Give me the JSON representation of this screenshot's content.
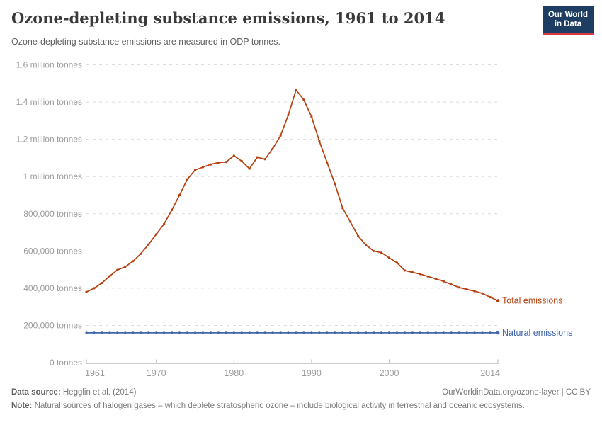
{
  "header": {
    "title": "Ozone-depleting substance emissions, 1961 to 2014",
    "subtitle": "Ozone-depleting substance emissions are measured in ODP tonnes."
  },
  "logo": {
    "line1": "Our World",
    "line2": "in Data"
  },
  "footer": {
    "data_source_label": "Data source:",
    "data_source_text": " Hegglin et al. (2014)",
    "link_text": "OurWorldinData.org/ozone-layer",
    "license_text": " | CC BY",
    "note_label": "Note:",
    "note_text": " Natural sources of halogen gases – which deplete stratospheric ozone – include biological activity in terrestrial and oceanic ecosystems."
  },
  "chart_data": {
    "type": "line",
    "title": "Ozone-depleting substance emissions, 1961 to 2014",
    "xlabel": "",
    "ylabel": "ODP tonnes",
    "xlim": [
      1961,
      2014
    ],
    "ylim": [
      0,
      1600000
    ],
    "grid": "dashed horizontal",
    "legend_position": "right-of-line-ends",
    "x": [
      1961,
      1962,
      1963,
      1964,
      1965,
      1966,
      1967,
      1968,
      1969,
      1970,
      1971,
      1972,
      1973,
      1974,
      1975,
      1976,
      1977,
      1978,
      1979,
      1980,
      1981,
      1982,
      1983,
      1984,
      1985,
      1986,
      1987,
      1988,
      1989,
      1990,
      1991,
      1992,
      1993,
      1994,
      1995,
      1996,
      1997,
      1998,
      1999,
      2000,
      2001,
      2002,
      2003,
      2004,
      2005,
      2006,
      2007,
      2008,
      2009,
      2010,
      2011,
      2012,
      2013,
      2014
    ],
    "series": [
      {
        "name": "Total emissions",
        "color": "#b5400f",
        "values": [
          380000,
          400000,
          428000,
          465000,
          498000,
          515000,
          545000,
          585000,
          635000,
          690000,
          745000,
          820000,
          900000,
          985000,
          1035000,
          1050000,
          1065000,
          1075000,
          1078000,
          1112000,
          1083000,
          1042000,
          1103000,
          1093000,
          1150000,
          1220000,
          1330000,
          1465000,
          1412000,
          1322000,
          1190000,
          1076000,
          961000,
          830000,
          756000,
          680000,
          632000,
          600000,
          591000,
          563000,
          537000,
          495000,
          485000,
          476000,
          463000,
          450000,
          437000,
          420000,
          404000,
          394000,
          384000,
          372000,
          352000,
          332000
        ]
      },
      {
        "name": "Natural emissions",
        "color": "#4166ac",
        "values": [
          160000,
          160000,
          160000,
          160000,
          160000,
          160000,
          160000,
          160000,
          160000,
          160000,
          160000,
          160000,
          160000,
          160000,
          160000,
          160000,
          160000,
          160000,
          160000,
          160000,
          160000,
          160000,
          160000,
          160000,
          160000,
          160000,
          160000,
          160000,
          160000,
          160000,
          160000,
          160000,
          160000,
          160000,
          160000,
          160000,
          160000,
          160000,
          160000,
          160000,
          160000,
          160000,
          160000,
          160000,
          160000,
          160000,
          160000,
          160000,
          160000,
          160000,
          160000,
          160000,
          160000,
          160000
        ]
      }
    ],
    "y_ticks": [
      {
        "value": 0,
        "label": "0 tonnes"
      },
      {
        "value": 200000,
        "label": "200,000 tonnes"
      },
      {
        "value": 400000,
        "label": "400,000 tonnes"
      },
      {
        "value": 600000,
        "label": "600,000 tonnes"
      },
      {
        "value": 800000,
        "label": "800,000 tonnes"
      },
      {
        "value": 1000000,
        "label": "1 million tonnes"
      },
      {
        "value": 1200000,
        "label": "1.2 million tonnes"
      },
      {
        "value": 1400000,
        "label": "1.4 million tonnes"
      },
      {
        "value": 1600000,
        "label": "1.6 million tonnes"
      }
    ],
    "x_ticks": [
      1961,
      1970,
      1980,
      1990,
      2000,
      2014
    ]
  }
}
